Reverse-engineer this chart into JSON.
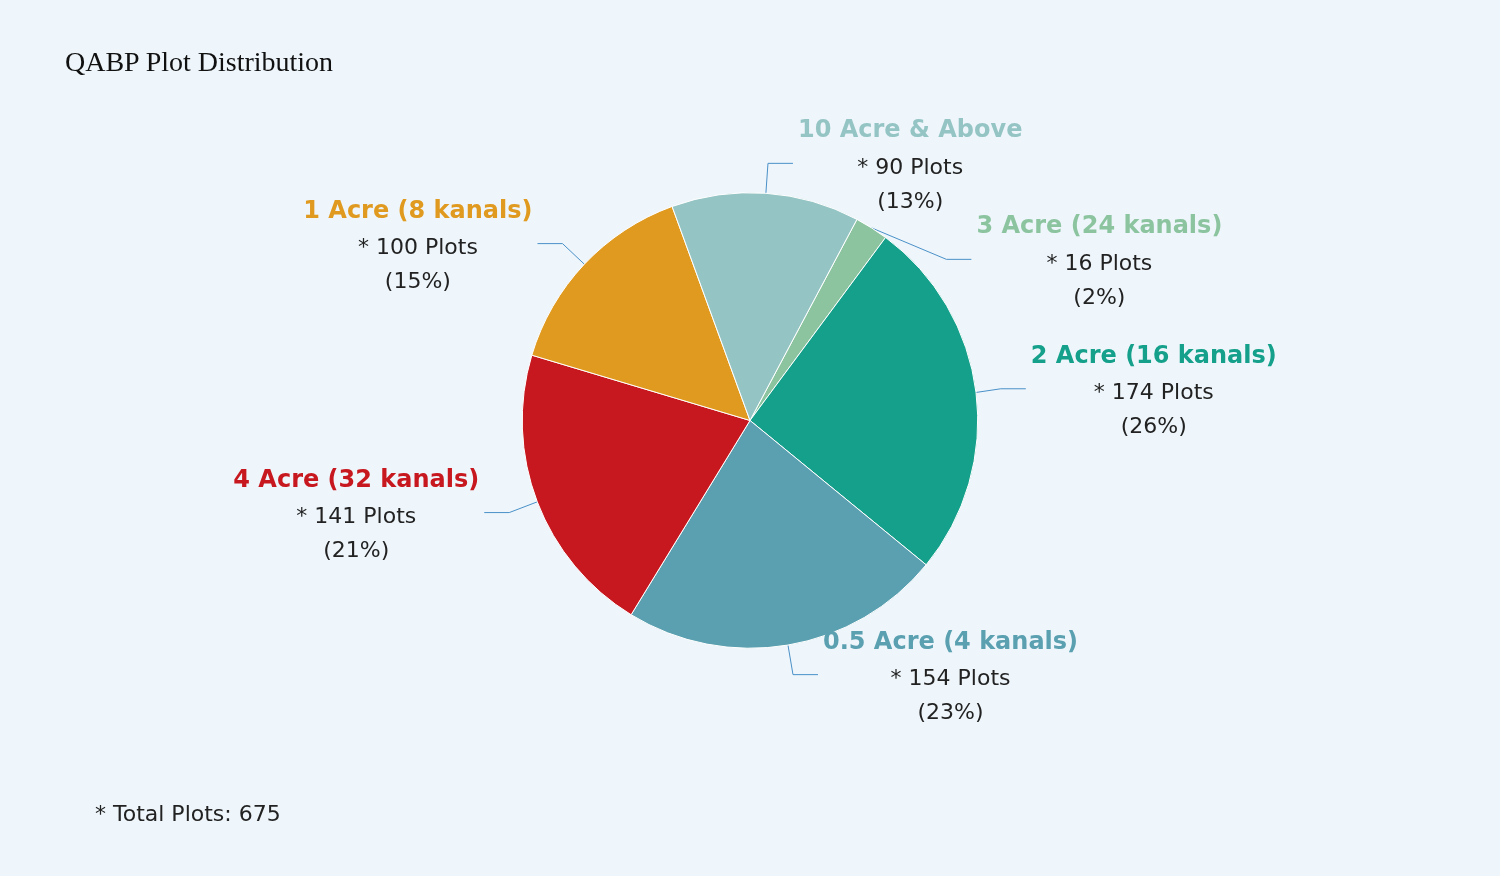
{
  "chart_data": {
    "type": "pie",
    "title": "QABP Plot Distribution",
    "categories": [
      "3 Acre (24 kanals)",
      "2 Acre (16 kanals)",
      "0.5 Acre (4 kanals)",
      "4 Acre (32 kanals)",
      "1 Acre (8 kanals)",
      "10 Acre & Above"
    ],
    "values": [
      16,
      174,
      154,
      141,
      100,
      90
    ],
    "colors": [
      "#8cc4a0",
      "#14a08a",
      "#5aa0b0",
      "#c8181f",
      "#e09a20",
      "#95c4c4"
    ],
    "value_labels": [
      "* 16 Plots\n(2%)",
      "* 174 Plots\n(26%)",
      "* 154 Plots\n(23%)",
      "* 141 Plots\n(21%)",
      "* 100 Plots\n(15%)",
      "* 90 Plots\n(13%)"
    ],
    "annotations": [
      "* Total Plots: 675"
    ],
    "legend": false
  }
}
